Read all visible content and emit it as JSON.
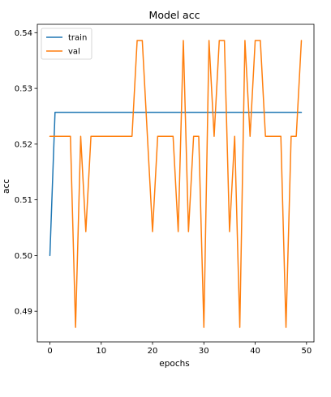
{
  "chart_data": {
    "type": "line",
    "title": "Model acc",
    "xlabel": "epochs",
    "ylabel": "acc",
    "xlim": [
      -2.45,
      51.45
    ],
    "ylim": [
      0.4845,
      0.5415
    ],
    "xticks": [
      0,
      10,
      20,
      30,
      40,
      50
    ],
    "yticks": [
      0.49,
      0.5,
      0.51,
      0.52,
      0.53,
      0.54
    ],
    "ytick_labels": [
      "0.49",
      "0.50",
      "0.51",
      "0.52",
      "0.53",
      "0.54"
    ],
    "grid": false,
    "legend": "top-left",
    "series": [
      {
        "name": "train",
        "color": "#1f77b4",
        "x": [
          0,
          1,
          2,
          3,
          4,
          5,
          6,
          7,
          8,
          9,
          10,
          11,
          12,
          13,
          14,
          15,
          16,
          17,
          18,
          19,
          20,
          21,
          22,
          23,
          24,
          25,
          26,
          27,
          28,
          29,
          30,
          31,
          32,
          33,
          34,
          35,
          36,
          37,
          38,
          39,
          40,
          41,
          42,
          43,
          44,
          45,
          46,
          47,
          48,
          49
        ],
        "values": [
          0.5,
          0.5257,
          0.5257,
          0.5257,
          0.5257,
          0.5257,
          0.5257,
          0.5257,
          0.5257,
          0.5257,
          0.5257,
          0.5257,
          0.5257,
          0.5257,
          0.5257,
          0.5257,
          0.5257,
          0.5257,
          0.5257,
          0.5257,
          0.5257,
          0.5257,
          0.5257,
          0.5257,
          0.5257,
          0.5257,
          0.5257,
          0.5257,
          0.5257,
          0.5257,
          0.5257,
          0.5257,
          0.5257,
          0.5257,
          0.5257,
          0.5257,
          0.5257,
          0.5257,
          0.5257,
          0.5257,
          0.5257,
          0.5257,
          0.5257,
          0.5257,
          0.5257,
          0.5257,
          0.5257,
          0.5257,
          0.5257,
          0.5257
        ]
      },
      {
        "name": "val",
        "color": "#ff7f0e",
        "x": [
          0,
          1,
          2,
          3,
          4,
          5,
          6,
          7,
          8,
          9,
          10,
          11,
          12,
          13,
          14,
          15,
          16,
          17,
          18,
          19,
          20,
          21,
          22,
          23,
          24,
          25,
          26,
          27,
          28,
          29,
          30,
          31,
          32,
          33,
          34,
          35,
          36,
          37,
          38,
          39,
          40,
          41,
          42,
          43,
          44,
          45,
          46,
          47,
          48,
          49
        ],
        "values": [
          0.5214,
          0.5214,
          0.5214,
          0.5214,
          0.5214,
          0.4871,
          0.5214,
          0.5043,
          0.5214,
          0.5214,
          0.5214,
          0.5214,
          0.5214,
          0.5214,
          0.5214,
          0.5214,
          0.5214,
          0.5386,
          0.5386,
          0.5214,
          0.5043,
          0.5214,
          0.5214,
          0.5214,
          0.5214,
          0.5043,
          0.5386,
          0.5043,
          0.5214,
          0.5214,
          0.4871,
          0.5386,
          0.5214,
          0.5386,
          0.5386,
          0.5043,
          0.5214,
          0.4871,
          0.5386,
          0.5214,
          0.5386,
          0.5386,
          0.5214,
          0.5214,
          0.5214,
          0.5214,
          0.4871,
          0.5214,
          0.5214,
          0.5386
        ]
      }
    ]
  }
}
